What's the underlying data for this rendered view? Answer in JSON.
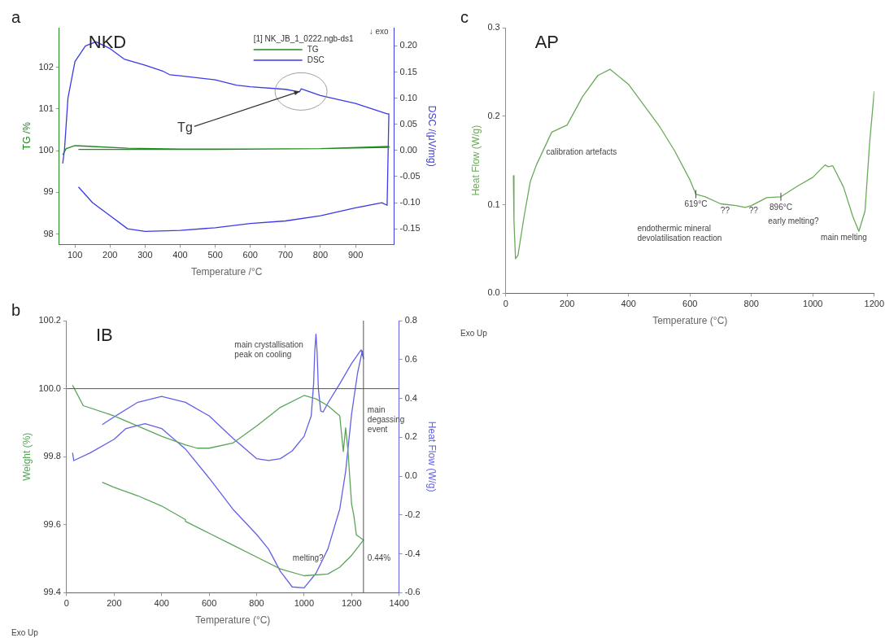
{
  "chart_data": [
    {
      "type": "line",
      "title": "a",
      "subtitle": "NKD",
      "xlabel": "Temperature /°C",
      "ylabel": "TG /%",
      "y2label": "DSC /(μV/mg)",
      "legend_title": "[1] NK_JB_1_0222.ngb-ds1",
      "legend": "top right",
      "grid": false,
      "marker": "none",
      "line_style": "solid",
      "xlim": [
        55,
        1010
      ],
      "xticks": [
        100,
        200,
        300,
        400,
        500,
        600,
        700,
        800,
        900
      ],
      "ylim": [
        97.75,
        102.95
      ],
      "yticks": [
        98,
        99,
        100,
        101,
        102
      ],
      "y2lim": [
        -0.18,
        0.235
      ],
      "y2ticks": [
        {
          "value": -0.15,
          "label": "-0.15"
        },
        {
          "value": -0.1,
          "label": "-0.10"
        },
        {
          "value": -0.05,
          "label": "-0.05"
        },
        {
          "value": 0,
          "label": "0.00"
        },
        {
          "value": 0.05,
          "label": "0.05"
        },
        {
          "value": 0.1,
          "label": "0.10"
        },
        {
          "value": 0.15,
          "label": "0.15"
        },
        {
          "value": 0.2,
          "label": "0.20"
        }
      ],
      "series": [
        {
          "name": "TG",
          "color": "#1f8a1f",
          "x": [
            65,
            75,
            100,
            150,
            250,
            400,
            600,
            800,
            995,
            995,
            800,
            500,
            300,
            110
          ],
          "values": [
            99.9,
            100.05,
            100.12,
            100.1,
            100.06,
            100.04,
            100.04,
            100.05,
            100.1,
            100.08,
            100.05,
            100.03,
            100.03,
            100.03
          ]
        },
        {
          "name": "DSC",
          "color": "#3a3ae8",
          "axis": "y2",
          "x": [
            65,
            68,
            70,
            80,
            100,
            130,
            160,
            200,
            240,
            300,
            350,
            370,
            400,
            500,
            560,
            600,
            700,
            740,
            745,
            800,
            900,
            990,
            995,
            990,
            975,
            900,
            800,
            700,
            600,
            500,
            400,
            300,
            250,
            200,
            150,
            110
          ],
          "values": [
            -0.025,
            -0.01,
            0.0,
            0.1,
            0.17,
            0.2,
            0.208,
            0.195,
            0.175,
            0.163,
            0.152,
            0.145,
            0.143,
            0.135,
            0.125,
            0.122,
            0.117,
            0.112,
            0.118,
            0.105,
            0.09,
            0.07,
            0.07,
            -0.105,
            -0.1,
            -0.11,
            -0.125,
            -0.135,
            -0.14,
            -0.148,
            -0.153,
            -0.155,
            -0.15,
            -0.125,
            -0.1,
            -0.07
          ]
        }
      ],
      "annotations": [
        "↓ exo",
        {
          "text": "Tg",
          "x": 740,
          "y": 101.42
        }
      ]
    },
    {
      "type": "line",
      "title": "b",
      "subtitle": "IB",
      "xlabel": "Temperature (°C)",
      "ylabel": "Weight (%)",
      "y2label": "Heat Flow (W/g)",
      "grid": false,
      "marker": "none",
      "line_style": "solid",
      "xlim": [
        0,
        1400
      ],
      "xticks": [
        0,
        200,
        400,
        600,
        800,
        1000,
        1200,
        1400
      ],
      "ylim": [
        99.4,
        100.2
      ],
      "yticks": [
        99.4,
        99.6,
        99.8,
        {
          "value": 100,
          "label": "100.0"
        },
        100.2
      ],
      "y2lim": [
        -0.6,
        0.8
      ],
      "y2ticks": [
        -0.6,
        -0.4,
        -0.2,
        {
          "value": 0,
          "label": "0.0"
        },
        0.2,
        0.4,
        0.6,
        0.8
      ],
      "series": [
        {
          "color": "#5aa55a",
          "x": [
            25,
            70,
            200,
            300,
            400,
            500,
            550,
            600,
            700,
            800,
            900,
            1000,
            1050,
            1100,
            1150,
            1165,
            1175,
            1185,
            1200,
            1210,
            1220,
            1240,
            1250,
            1200,
            1150,
            1100,
            1000,
            900,
            800,
            700,
            600,
            500,
            500,
            400,
            300,
            200,
            150
          ],
          "values": [
            100.01,
            99.95,
            99.92,
            99.89,
            99.86,
            99.835,
            99.825,
            99.825,
            99.84,
            99.89,
            99.945,
            99.98,
            99.97,
            99.95,
            99.92,
            99.815,
            99.885,
            99.815,
            99.66,
            99.625,
            99.57,
            99.56,
            99.555,
            99.51,
            99.475,
            99.455,
            99.45,
            99.47,
            99.505,
            99.54,
            99.575,
            99.61,
            99.615,
            99.655,
            99.685,
            99.71,
            99.725
          ]
        },
        {
          "color": "#6161e8",
          "axis": "y2",
          "x": [
            25,
            30,
            100,
            200,
            250,
            330,
            400,
            500,
            600,
            700,
            800,
            850,
            900,
            950,
            1000,
            1050,
            1100,
            1150,
            1175,
            1200,
            1225,
            1245,
            1250,
            1240,
            1200,
            1150,
            1100,
            1080,
            1070,
            1060,
            1055,
            1050,
            1045,
            1040,
            1030,
            1000,
            950,
            900,
            850,
            800,
            700,
            600,
            500,
            400,
            300,
            200,
            150
          ],
          "values": [
            0.12,
            0.08,
            0.12,
            0.19,
            0.245,
            0.27,
            0.245,
            0.14,
            -0.01,
            -0.17,
            -0.3,
            -0.375,
            -0.49,
            -0.57,
            -0.575,
            -0.5,
            -0.375,
            -0.17,
            0.025,
            0.32,
            0.53,
            0.645,
            0.605,
            0.65,
            0.58,
            0.475,
            0.375,
            0.33,
            0.335,
            0.45,
            0.63,
            0.73,
            0.645,
            0.475,
            0.31,
            0.205,
            0.13,
            0.09,
            0.08,
            0.09,
            0.195,
            0.31,
            0.38,
            0.41,
            0.38,
            0.305,
            0.265
          ]
        }
      ],
      "ref_lines": [
        {
          "axis": "y",
          "value": 100,
          "color": "#555555"
        },
        {
          "axis": "x",
          "value": 1250,
          "color": "#555555"
        }
      ],
      "annotations": [
        "Exo Up",
        "main crystallisation peak on cooling",
        "main degassing event",
        "melting?",
        "0.44%"
      ]
    },
    {
      "type": "line",
      "title": "c",
      "subtitle": "AP",
      "xlabel": "Temperature (°C)",
      "ylabel": "Heat Flow (W/g)",
      "grid": false,
      "marker": "none",
      "line_style": "solid",
      "xlim": [
        0,
        1200
      ],
      "xticks": [
        0,
        200,
        400,
        600,
        800,
        1000,
        1200
      ],
      "ylim": [
        0,
        0.3
      ],
      "yticks": [
        {
          "value": 0,
          "label": "0.0"
        },
        0.1,
        0.2,
        0.3
      ],
      "series": [
        {
          "color": "#6aaa5a",
          "x": [
            25,
            27,
            32,
            40,
            60,
            80,
            100,
            150,
            200,
            250,
            300,
            340,
            400,
            500,
            550,
            600,
            619,
            650,
            700,
            750,
            780,
            800,
            850,
            896,
            950,
            1000,
            1040,
            1050,
            1065,
            1100,
            1130,
            1150,
            1170,
            1185,
            1200
          ],
          "values": [
            0.133,
            0.081,
            0.039,
            0.043,
            0.087,
            0.126,
            0.145,
            0.182,
            0.19,
            0.222,
            0.246,
            0.253,
            0.236,
            0.189,
            0.161,
            0.128,
            0.112,
            0.109,
            0.101,
            0.099,
            0.097,
            0.099,
            0.108,
            0.109,
            0.121,
            0.131,
            0.145,
            0.143,
            0.144,
            0.12,
            0.087,
            0.07,
            0.093,
            0.17,
            0.228
          ]
        }
      ],
      "annotations": [
        "Exo Up",
        "calibration artefacts",
        {
          "text": "619°C",
          "x": 619,
          "y": 0.112
        },
        "??",
        "??",
        {
          "text": "896°C",
          "x": 896,
          "y": 0.109
        },
        "endothermic mineral devolatilisation reaction",
        "early melting?",
        "main melting"
      ]
    }
  ]
}
